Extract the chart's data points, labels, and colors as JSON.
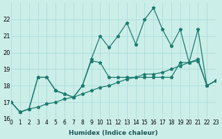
{
  "xlabel": "Humidex (Indice chaleur)",
  "ylabel": "",
  "bg_color": "#cceee8",
  "grid_color": "#aadddd",
  "line_color": "#1a7a6e",
  "xmin": 0,
  "xmax": 23,
  "ymin": 16,
  "ymax": 23,
  "yticks": [
    16,
    17,
    18,
    19,
    20,
    21,
    22
  ],
  "xticks": [
    0,
    1,
    2,
    3,
    4,
    5,
    6,
    7,
    8,
    9,
    10,
    11,
    12,
    13,
    14,
    15,
    16,
    17,
    18,
    19,
    20,
    21,
    22,
    23
  ],
  "line1_x": [
    0,
    1,
    2,
    3,
    4,
    5,
    6,
    7,
    8,
    9,
    10,
    11,
    12,
    13,
    14,
    15,
    16,
    17,
    18,
    19,
    20,
    21,
    22,
    23
  ],
  "line1_y": [
    17.0,
    16.4,
    16.6,
    18.5,
    18.5,
    17.7,
    17.5,
    17.3,
    18.0,
    19.6,
    21.0,
    20.3,
    21.0,
    21.8,
    20.5,
    22.0,
    22.7,
    21.4,
    20.4,
    21.4,
    19.4,
    19.6,
    18.0,
    18.3
  ],
  "line2_x": [
    0,
    1,
    2,
    3,
    4,
    5,
    6,
    7,
    8,
    9,
    10,
    11,
    12,
    13,
    14,
    15,
    16,
    17,
    18,
    19,
    20,
    21,
    22,
    23
  ],
  "line2_y": [
    17.0,
    16.4,
    16.6,
    18.5,
    18.5,
    17.7,
    17.5,
    17.3,
    18.0,
    19.5,
    19.4,
    18.5,
    18.5,
    18.5,
    18.5,
    18.5,
    18.5,
    18.5,
    18.5,
    19.4,
    19.4,
    21.4,
    18.0,
    18.3
  ],
  "line3_x": [
    0,
    1,
    2,
    3,
    4,
    5,
    6,
    7,
    8,
    9,
    10,
    11,
    12,
    13,
    14,
    15,
    16,
    17,
    18,
    19,
    20,
    21,
    22,
    23
  ],
  "line3_y": [
    17.0,
    16.4,
    16.6,
    16.7,
    16.9,
    17.0,
    17.2,
    17.3,
    17.5,
    17.7,
    17.9,
    18.0,
    18.2,
    18.4,
    18.5,
    18.7,
    18.7,
    18.8,
    19.0,
    19.2,
    19.4,
    19.5,
    18.0,
    18.3
  ]
}
